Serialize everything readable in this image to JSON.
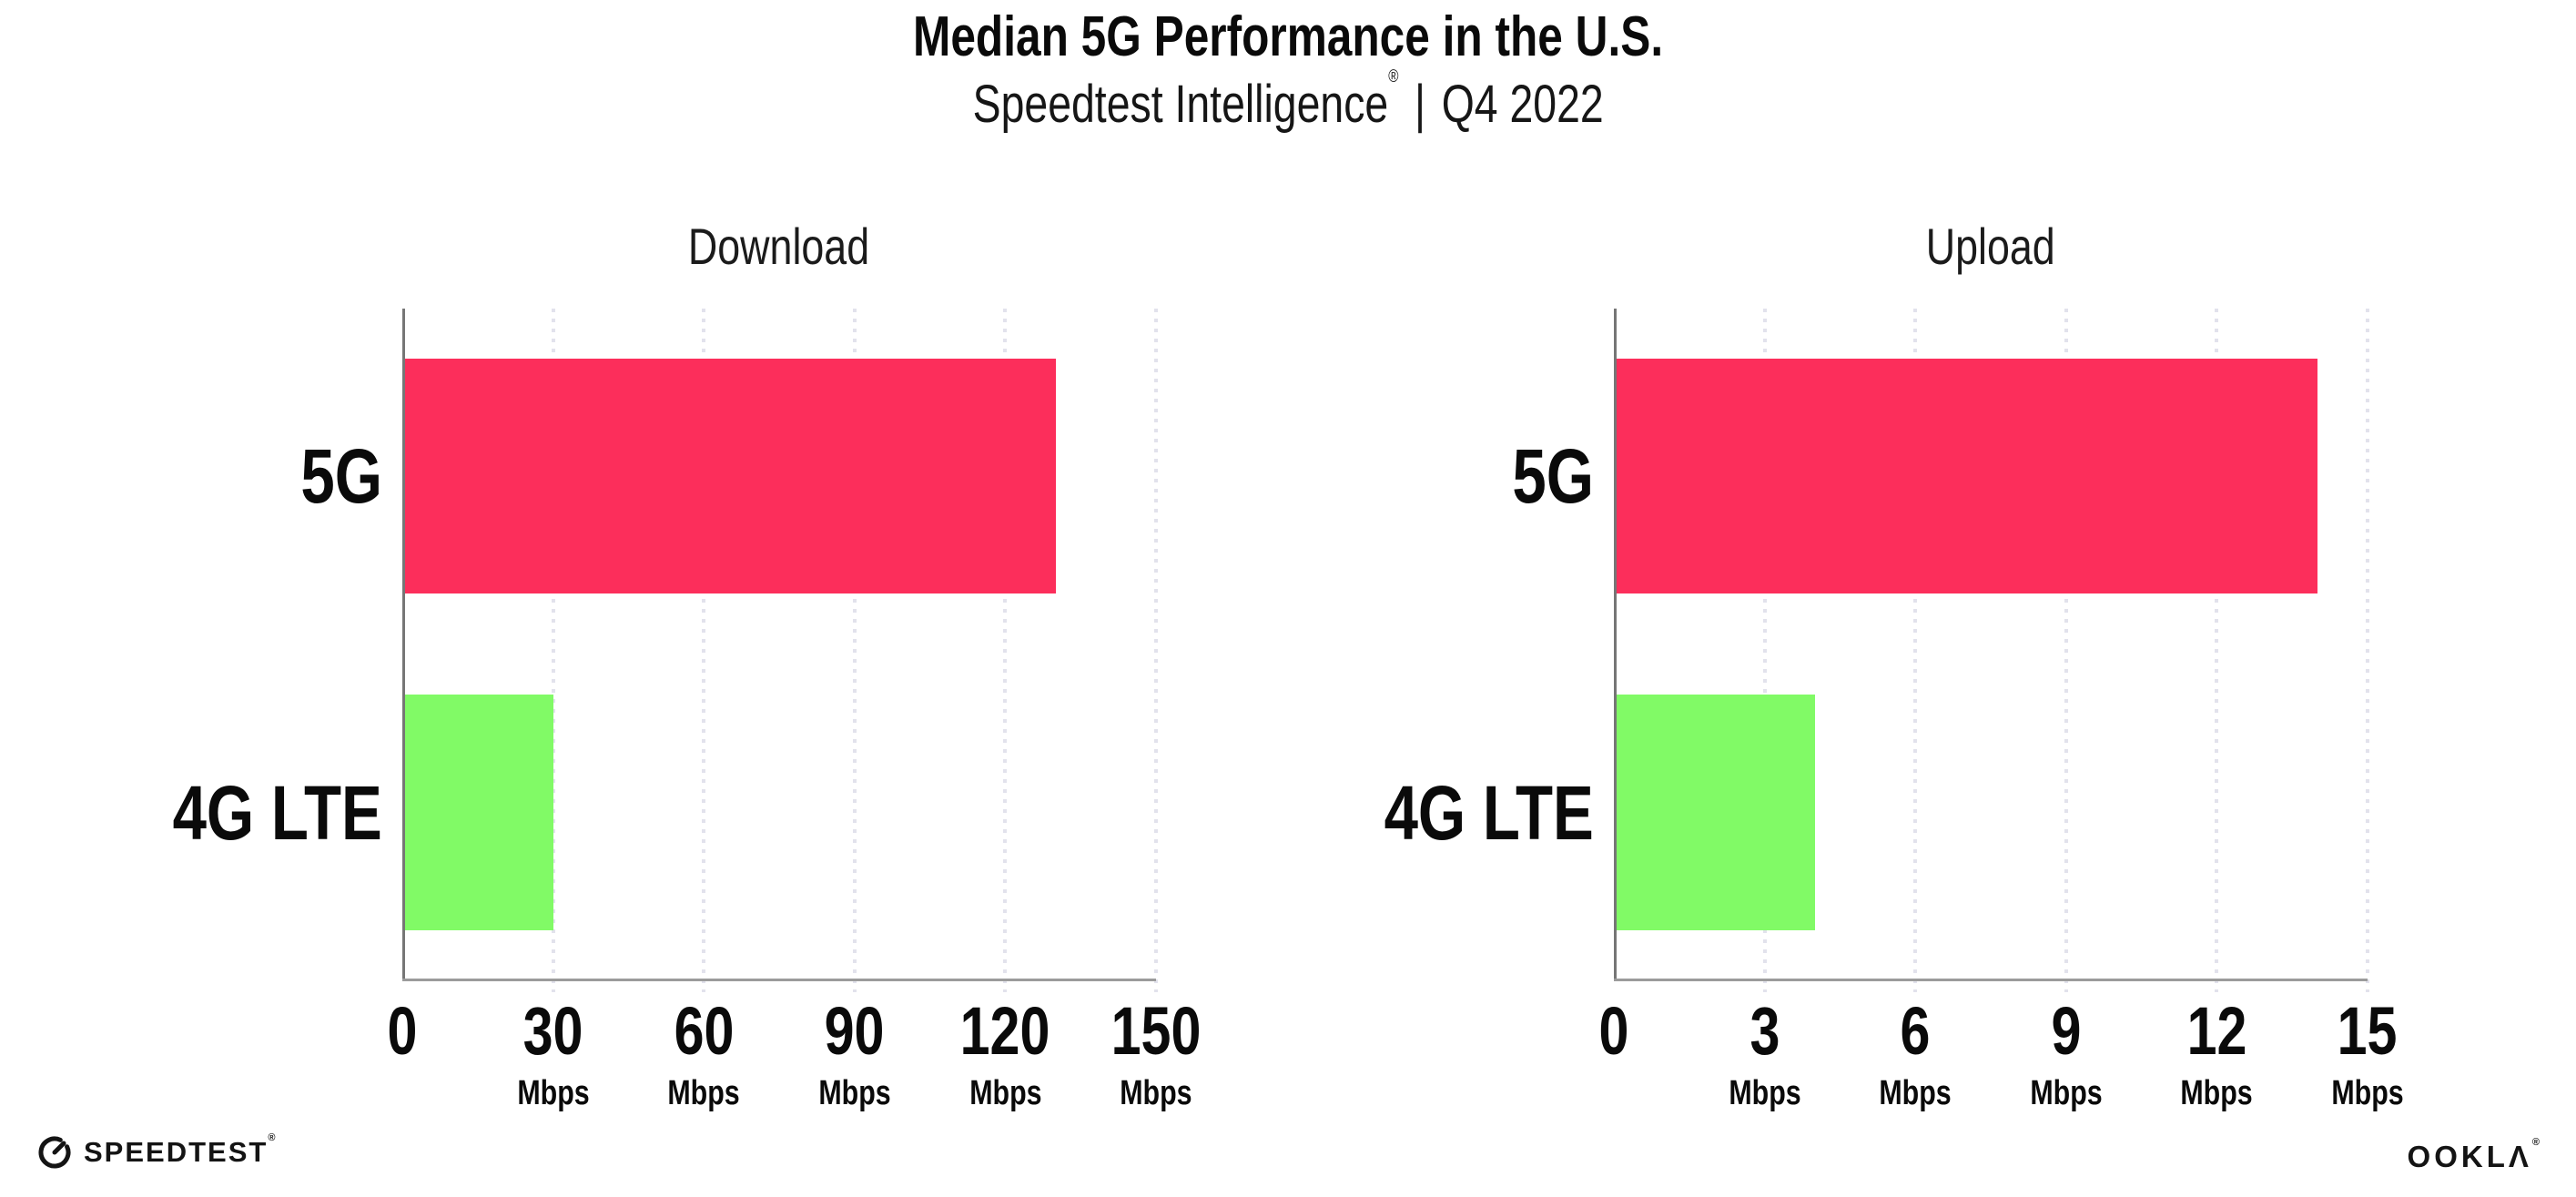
{
  "header": {
    "title": "Median 5G Performance in the U.S.",
    "subtitle_product": "Speedtest Intelligence",
    "subtitle_registered": "®",
    "subtitle_separator": "|",
    "subtitle_period": "Q4 2022"
  },
  "chart_data": [
    {
      "type": "bar",
      "orientation": "horizontal",
      "title": "Download",
      "categories": [
        "5G",
        "4G LTE"
      ],
      "values": [
        130,
        30
      ],
      "unit": "Mbps",
      "xlabel": "",
      "ylabel": "",
      "xlim": [
        0,
        150
      ],
      "xticks": [
        0,
        30,
        60,
        90,
        120,
        150
      ],
      "bar_colors": [
        "#fc2e5b",
        "#81fa66"
      ],
      "grid": "vertical dotted",
      "legend": "none"
    },
    {
      "type": "bar",
      "orientation": "horizontal",
      "title": "Upload",
      "categories": [
        "5G",
        "4G LTE"
      ],
      "values": [
        14,
        4
      ],
      "unit": "Mbps",
      "xlabel": "",
      "ylabel": "",
      "xlim": [
        0,
        15
      ],
      "xticks": [
        0,
        3,
        6,
        9,
        12,
        15
      ],
      "bar_colors": [
        "#fc2e5b",
        "#81fa66"
      ],
      "grid": "vertical dotted",
      "legend": "none"
    }
  ],
  "footer": {
    "speedtest_label": "SPEEDTEST",
    "speedtest_registered": "®",
    "ookla_label": "OOKLΛ",
    "ookla_registered": "®"
  },
  "colors": {
    "bar_5g": "#fc2e5b",
    "bar_4g_lte": "#81fa66",
    "gridline": "#e2e2ec",
    "axis_left": "#767676",
    "axis_bottom": "#9b9b9b",
    "text": "#0d0d0d",
    "background": "#ffffff"
  }
}
